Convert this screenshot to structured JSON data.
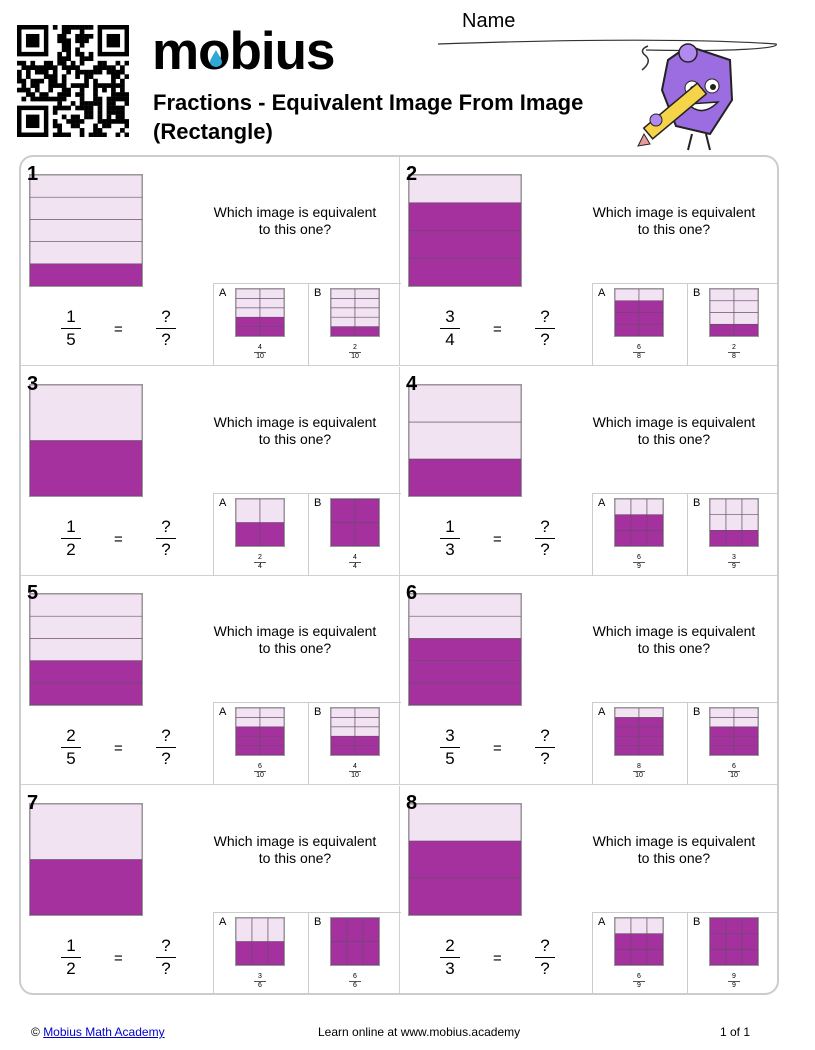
{
  "header": {
    "logo_text": "mobius",
    "title": "Fractions - Equivalent Image From Image (Rectangle)",
    "name_label": "Name",
    "qr_icon": "qr-code-icon",
    "mascot_icon": "pencil-mascot-icon"
  },
  "colors": {
    "filled": "#A4319E",
    "empty": "#F1E3F1",
    "line": "#6b4a6b"
  },
  "problems": [
    {
      "number": "1",
      "question": "Which image is equivalent to this one?",
      "main": {
        "num": "1",
        "den": "5",
        "rows": 5,
        "cols": 1,
        "filled": 1
      },
      "unknown": {
        "num": "?",
        "den": "?"
      },
      "eq": "=",
      "options": [
        {
          "label": "A",
          "num": "4",
          "den": "10",
          "rows": 5,
          "cols": 2,
          "filled": 4
        },
        {
          "label": "B",
          "num": "2",
          "den": "10",
          "rows": 5,
          "cols": 2,
          "filled": 2
        }
      ]
    },
    {
      "number": "2",
      "question": "Which image is equivalent to this one?",
      "main": {
        "num": "3",
        "den": "4",
        "rows": 4,
        "cols": 1,
        "filled": 3
      },
      "unknown": {
        "num": "?",
        "den": "?"
      },
      "eq": "=",
      "options": [
        {
          "label": "A",
          "num": "6",
          "den": "8",
          "rows": 4,
          "cols": 2,
          "filled": 6
        },
        {
          "label": "B",
          "num": "2",
          "den": "8",
          "rows": 4,
          "cols": 2,
          "filled": 2
        }
      ]
    },
    {
      "number": "3",
      "question": "Which image is equivalent to this one?",
      "main": {
        "num": "1",
        "den": "2",
        "rows": 2,
        "cols": 1,
        "filled": 1
      },
      "unknown": {
        "num": "?",
        "den": "?"
      },
      "eq": "=",
      "options": [
        {
          "label": "A",
          "num": "2",
          "den": "4",
          "rows": 2,
          "cols": 2,
          "filled": 2
        },
        {
          "label": "B",
          "num": "4",
          "den": "4",
          "rows": 2,
          "cols": 2,
          "filled": 4
        }
      ]
    },
    {
      "number": "4",
      "question": "Which image is equivalent to this one?",
      "main": {
        "num": "1",
        "den": "3",
        "rows": 3,
        "cols": 1,
        "filled": 1
      },
      "unknown": {
        "num": "?",
        "den": "?"
      },
      "eq": "=",
      "options": [
        {
          "label": "A",
          "num": "6",
          "den": "9",
          "rows": 3,
          "cols": 3,
          "filled": 6
        },
        {
          "label": "B",
          "num": "3",
          "den": "9",
          "rows": 3,
          "cols": 3,
          "filled": 3
        }
      ]
    },
    {
      "number": "5",
      "question": "Which image is equivalent to this one?",
      "main": {
        "num": "2",
        "den": "5",
        "rows": 5,
        "cols": 1,
        "filled": 2
      },
      "unknown": {
        "num": "?",
        "den": "?"
      },
      "eq": "=",
      "options": [
        {
          "label": "A",
          "num": "6",
          "den": "10",
          "rows": 5,
          "cols": 2,
          "filled": 6
        },
        {
          "label": "B",
          "num": "4",
          "den": "10",
          "rows": 5,
          "cols": 2,
          "filled": 4
        }
      ]
    },
    {
      "number": "6",
      "question": "Which image is equivalent to this one?",
      "main": {
        "num": "3",
        "den": "5",
        "rows": 5,
        "cols": 1,
        "filled": 3
      },
      "unknown": {
        "num": "?",
        "den": "?"
      },
      "eq": "=",
      "options": [
        {
          "label": "A",
          "num": "8",
          "den": "10",
          "rows": 5,
          "cols": 2,
          "filled": 8
        },
        {
          "label": "B",
          "num": "6",
          "den": "10",
          "rows": 5,
          "cols": 2,
          "filled": 6
        }
      ]
    },
    {
      "number": "7",
      "question": "Which image is equivalent to this one?",
      "main": {
        "num": "1",
        "den": "2",
        "rows": 2,
        "cols": 1,
        "filled": 1
      },
      "unknown": {
        "num": "?",
        "den": "?"
      },
      "eq": "=",
      "options": [
        {
          "label": "A",
          "num": "3",
          "den": "6",
          "rows": 2,
          "cols": 3,
          "filled": 3
        },
        {
          "label": "B",
          "num": "6",
          "den": "6",
          "rows": 2,
          "cols": 3,
          "filled": 6
        }
      ]
    },
    {
      "number": "8",
      "question": "Which image is equivalent to this one?",
      "main": {
        "num": "2",
        "den": "3",
        "rows": 3,
        "cols": 1,
        "filled": 2
      },
      "unknown": {
        "num": "?",
        "den": "?"
      },
      "eq": "=",
      "options": [
        {
          "label": "A",
          "num": "6",
          "den": "9",
          "rows": 3,
          "cols": 3,
          "filled": 6
        },
        {
          "label": "B",
          "num": "9",
          "den": "9",
          "rows": 3,
          "cols": 3,
          "filled": 9
        }
      ]
    }
  ],
  "footer": {
    "copyright": "©",
    "link_text": "Mobius Math Academy",
    "middle": "Learn online at www.mobius.academy",
    "page": "1 of 1"
  }
}
